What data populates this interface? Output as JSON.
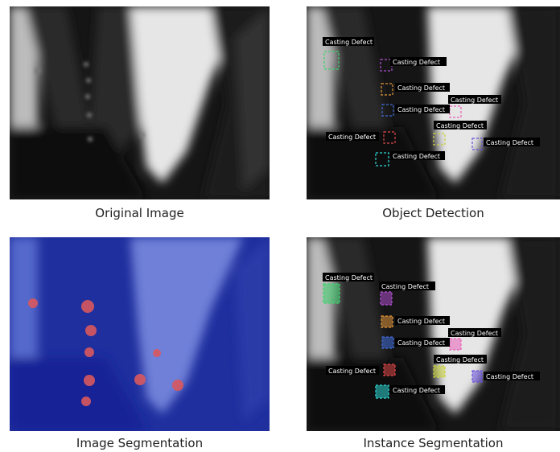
{
  "captions": {
    "original": "Original Image",
    "detection": "Object Detection",
    "segmentation": "Image Segmentation",
    "instance": "Instance Segmentation"
  },
  "label_text": "Casting Defect",
  "colors": {
    "background": "#ffffff",
    "segmentation_blue": "#1c2fa0",
    "segment_blob": "#d9585e",
    "box_green": "#3bd36b",
    "box_purple": "#b04fd0",
    "box_orange": "#e0953a",
    "box_blue": "#3f6bd8",
    "box_pink": "#e85fb8",
    "box_red": "#e04848",
    "box_yellow": "#c9d33a",
    "box_violet": "#6a4fe0",
    "box_cyan": "#2fd6d6"
  }
}
